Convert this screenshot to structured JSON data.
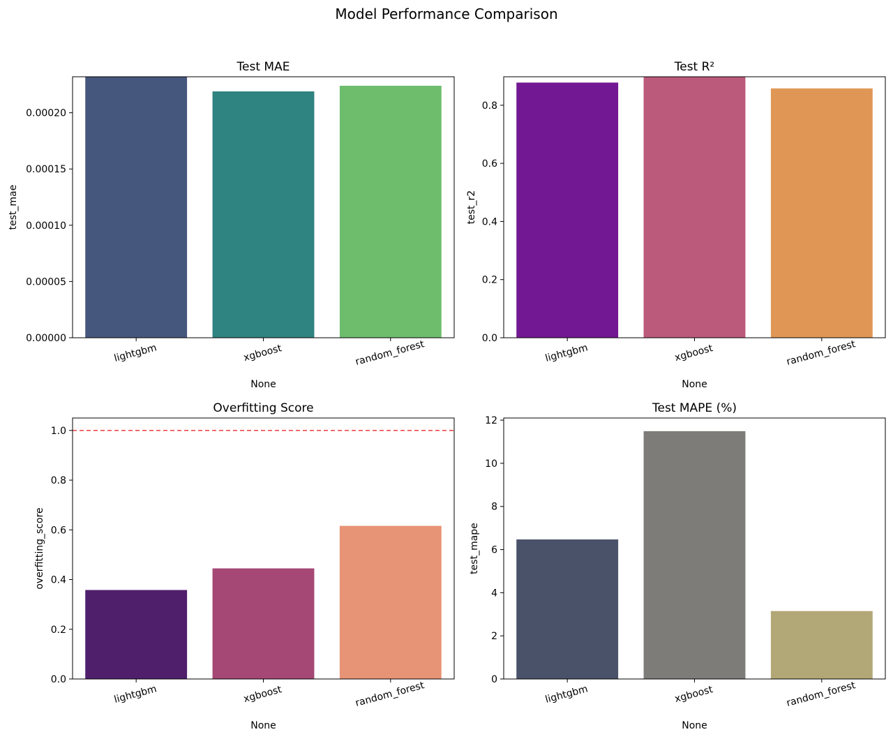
{
  "figure": {
    "title": "Model Performance Comparison"
  },
  "chart_data": [
    {
      "type": "bar",
      "title": "Test MAE",
      "categories": [
        "lightgbm",
        "xgboost",
        "random_forest"
      ],
      "values": [
        0.000232,
        0.000219,
        0.000224
      ],
      "xlabel": "None",
      "ylabel": "test_mae",
      "ylim": [
        0,
        0.000232
      ],
      "yticks": [
        0,
        5e-05,
        0.0001,
        0.00015,
        0.0002
      ],
      "ytick_labels": [
        "0.00000",
        "0.00005",
        "0.00010",
        "0.00015",
        "0.00020"
      ],
      "colors": [
        "#46577e",
        "#2f8380",
        "#6dbd6d"
      ],
      "grid": false
    },
    {
      "type": "bar",
      "title": "Test R²",
      "categories": [
        "lightgbm",
        "xgboost",
        "random_forest"
      ],
      "values": [
        0.878,
        0.898,
        0.858
      ],
      "xlabel": "None",
      "ylabel": "test_r2",
      "ylim": [
        0,
        0.898
      ],
      "yticks": [
        0,
        0.2,
        0.4,
        0.6,
        0.8
      ],
      "ytick_labels": [
        "0.0",
        "0.2",
        "0.4",
        "0.6",
        "0.8"
      ],
      "colors": [
        "#731893",
        "#bc5a7b",
        "#e09756"
      ],
      "grid": false
    },
    {
      "type": "bar",
      "title": "Overfitting Score",
      "categories": [
        "lightgbm",
        "xgboost",
        "random_forest"
      ],
      "values": [
        0.358,
        0.445,
        0.616
      ],
      "xlabel": "None",
      "ylabel": "overfitting_score",
      "ylim": [
        0,
        1.05
      ],
      "yticks": [
        0,
        0.2,
        0.4,
        0.6,
        0.8,
        1.0
      ],
      "ytick_labels": [
        "0.0",
        "0.2",
        "0.4",
        "0.6",
        "0.8",
        "1.0"
      ],
      "colors": [
        "#4f1f6b",
        "#a54876",
        "#e79375"
      ],
      "reference_line": {
        "y": 1.0,
        "color": "#ef4b4b",
        "style": "dashed"
      },
      "grid": false
    },
    {
      "type": "bar",
      "title": "Test MAPE (%)",
      "categories": [
        "lightgbm",
        "xgboost",
        "random_forest"
      ],
      "values": [
        6.47,
        11.49,
        3.15
      ],
      "xlabel": "None",
      "ylabel": "test_mape",
      "ylim": [
        0,
        12.1
      ],
      "yticks": [
        0,
        2,
        4,
        6,
        8,
        10,
        12
      ],
      "ytick_labels": [
        "0",
        "2",
        "4",
        "6",
        "8",
        "10",
        "12"
      ],
      "colors": [
        "#4a526a",
        "#7d7c79",
        "#b2a776"
      ],
      "grid": false
    }
  ]
}
